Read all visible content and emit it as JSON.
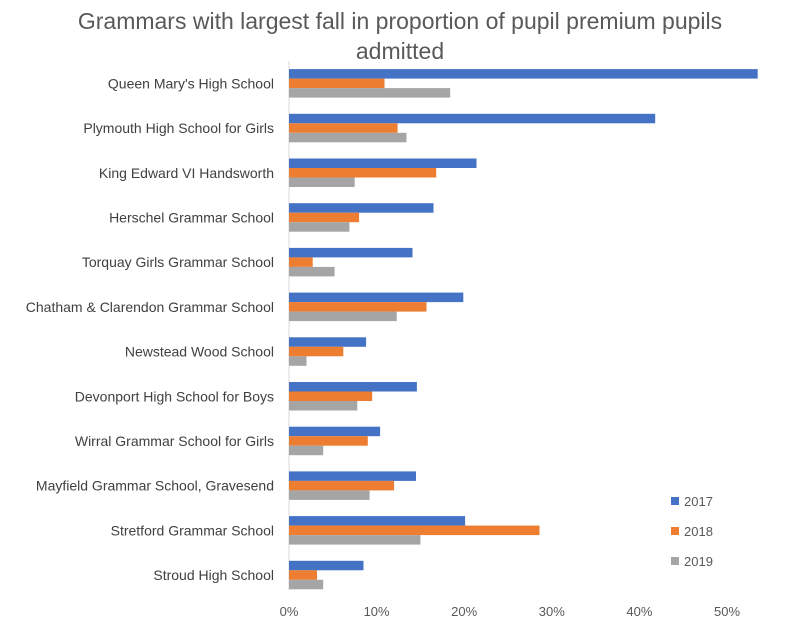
{
  "chart_data": {
    "type": "bar",
    "orientation": "horizontal",
    "title": "Grammars with largest fall in proportion of pupil premium pupils admitted",
    "categories": [
      "Queen Mary's High School",
      "Plymouth High School for Girls",
      "King Edward VI Handsworth",
      "Herschel Grammar School",
      "Torquay Girls Grammar School",
      "Chatham & Clarendon Grammar School",
      "Newstead Wood School",
      "Devonport High School for Boys",
      "Wirral Grammar School for Girls",
      "Mayfield Grammar School, Gravesend",
      "Stretford Grammar School",
      "Stroud High School"
    ],
    "series": [
      {
        "name": "2017",
        "color": "#4472C4",
        "values": [
          53.5,
          41.8,
          21.4,
          16.5,
          14.1,
          19.9,
          8.8,
          14.6,
          10.4,
          14.5,
          20.1,
          8.5
        ]
      },
      {
        "name": "2018",
        "color": "#ED7D31",
        "values": [
          10.9,
          12.4,
          16.8,
          8.0,
          2.7,
          15.7,
          6.2,
          9.5,
          9.0,
          12.0,
          28.6,
          3.2
        ]
      },
      {
        "name": "2019",
        "color": "#A5A5A5",
        "values": [
          18.4,
          13.4,
          7.5,
          6.9,
          5.2,
          12.3,
          2.0,
          7.8,
          3.9,
          9.2,
          15.0,
          3.9
        ]
      }
    ],
    "xlim": [
      0,
      55
    ],
    "xticks": [
      0,
      10,
      20,
      30,
      40,
      50
    ],
    "xtick_labels": [
      "0%",
      "10%",
      "20%",
      "30%",
      "40%",
      "50%"
    ],
    "legend_position": "bottom-right",
    "grid": false
  }
}
